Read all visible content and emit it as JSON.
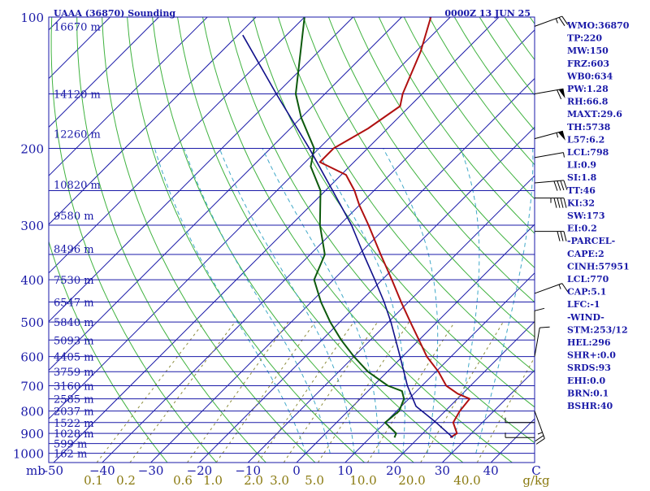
{
  "header": {
    "station": "UAAA (36870) Sounding",
    "time": "0000Z 13 JUN 25"
  },
  "colors": {
    "isobar": "#1a1aa8",
    "isotherm": "#1a1aa8",
    "dry_adiabat": "#3fb23f",
    "moist_adiabat": "#3fa8c8",
    "mixing_ratio": "#8c8c3c",
    "temperature": "#b01010",
    "dewpoint": "#0d5a0d",
    "parcel": "#10108a",
    "wind": "#000000"
  },
  "chart_data": {
    "type": "line",
    "title": "UAAA (36870) Sounding",
    "subtitle": "0000Z 13 JUN 25",
    "xlabel": "C",
    "x_units_mixing": "g/kg",
    "ylabel": "mb",
    "xlim": [
      -50,
      50
    ],
    "pressure_range": [
      1050,
      100
    ],
    "pressure_ticks": [
      100,
      200,
      300,
      400,
      500,
      600,
      700,
      800,
      900,
      1000
    ],
    "pressure_tick_labels": [
      "100",
      "200",
      "300",
      "400",
      "500",
      "600",
      "700",
      "800",
      "900",
      "1000"
    ],
    "pressure_axis_label": "mb",
    "temperature_ticks": [
      -50,
      -40,
      -30,
      -20,
      -10,
      0,
      10,
      20,
      30,
      40
    ],
    "temperature_tick_labels": [
      "-50",
      "−40",
      "−30",
      "−20",
      "−10",
      "0",
      "10",
      "20",
      "30",
      "40"
    ],
    "temperature_axis_label": "C",
    "mixing_ratio_labels": [
      "0.1",
      "0.2",
      "0.6",
      "1.0",
      "2.0",
      "3.0",
      "5.0",
      "10.0",
      "20.0",
      "40.0"
    ],
    "mixing_ratio_axis_label": "g/kg",
    "heights": [
      {
        "p": 105,
        "label": "16670 m"
      },
      {
        "p": 150,
        "label": "14120 m"
      },
      {
        "p": 185,
        "label": "12260 m"
      },
      {
        "p": 242,
        "label": "10820 m"
      },
      {
        "p": 285,
        "label": "9580 m"
      },
      {
        "p": 340,
        "label": "8496 m"
      },
      {
        "p": 400,
        "label": "7530 m"
      },
      {
        "p": 450,
        "label": "6547 m"
      },
      {
        "p": 500,
        "label": "5840 m"
      },
      {
        "p": 550,
        "label": "5093 m"
      },
      {
        "p": 600,
        "label": "4405 m"
      },
      {
        "p": 650,
        "label": "3759 m"
      },
      {
        "p": 700,
        "label": "3160 m"
      },
      {
        "p": 750,
        "label": "2585 m"
      },
      {
        "p": 800,
        "label": "2037 m"
      },
      {
        "p": 850,
        "label": "1522 m"
      },
      {
        "p": 900,
        "label": "1028 m"
      },
      {
        "p": 950,
        "label": "599 m"
      },
      {
        "p": 1000,
        "label": "162 m"
      }
    ],
    "series": [
      {
        "name": "Temperature",
        "points": [
          {
            "p": 920,
            "t": 26.5
          },
          {
            "p": 900,
            "t": 27.0
          },
          {
            "p": 850,
            "t": 24.0
          },
          {
            "p": 800,
            "t": 23.0
          },
          {
            "p": 750,
            "t": 22.5
          },
          {
            "p": 730,
            "t": 19.0
          },
          {
            "p": 700,
            "t": 15.0
          },
          {
            "p": 650,
            "t": 10.5
          },
          {
            "p": 600,
            "t": 5.0
          },
          {
            "p": 550,
            "t": 0.0
          },
          {
            "p": 500,
            "t": -5.5
          },
          {
            "p": 450,
            "t": -11.5
          },
          {
            "p": 400,
            "t": -18.0
          },
          {
            "p": 350,
            "t": -25.5
          },
          {
            "p": 300,
            "t": -34.0
          },
          {
            "p": 270,
            "t": -40.0
          },
          {
            "p": 250,
            "t": -44.0
          },
          {
            "p": 230,
            "t": -49.0
          },
          {
            "p": 215,
            "t": -57.0
          },
          {
            "p": 200,
            "t": -57.0
          },
          {
            "p": 180,
            "t": -54.0
          },
          {
            "p": 160,
            "t": -52.0
          },
          {
            "p": 150,
            "t": -54.0
          },
          {
            "p": 120,
            "t": -59.0
          },
          {
            "p": 100,
            "t": -64.0
          }
        ]
      },
      {
        "name": "Dewpoint",
        "points": [
          {
            "p": 920,
            "t": 15.0
          },
          {
            "p": 900,
            "t": 14.5
          },
          {
            "p": 850,
            "t": 10.0
          },
          {
            "p": 800,
            "t": 10.5
          },
          {
            "p": 750,
            "t": 9.0
          },
          {
            "p": 720,
            "t": 7.0
          },
          {
            "p": 700,
            "t": 3.0
          },
          {
            "p": 650,
            "t": -4.0
          },
          {
            "p": 600,
            "t": -10.0
          },
          {
            "p": 550,
            "t": -16.0
          },
          {
            "p": 500,
            "t": -22.0
          },
          {
            "p": 450,
            "t": -28.0
          },
          {
            "p": 400,
            "t": -34.0
          },
          {
            "p": 350,
            "t": -37.0
          },
          {
            "p": 300,
            "t": -44.0
          },
          {
            "p": 250,
            "t": -51.0
          },
          {
            "p": 220,
            "t": -58.0
          },
          {
            "p": 200,
            "t": -61.0
          },
          {
            "p": 170,
            "t": -70.0
          },
          {
            "p": 150,
            "t": -76.0
          },
          {
            "p": 100,
            "t": -90.0
          }
        ]
      },
      {
        "name": "Parcel",
        "points": [
          {
            "p": 920,
            "t": 27.0
          },
          {
            "p": 850,
            "t": 20.5
          },
          {
            "p": 780,
            "t": 13.0
          },
          {
            "p": 700,
            "t": 7.0
          },
          {
            "p": 600,
            "t": -0.5
          },
          {
            "p": 500,
            "t": -9.5
          },
          {
            "p": 450,
            "t": -15.0
          },
          {
            "p": 400,
            "t": -21.5
          },
          {
            "p": 350,
            "t": -29.0
          },
          {
            "p": 300,
            "t": -37.5
          },
          {
            "p": 250,
            "t": -48.5
          },
          {
            "p": 200,
            "t": -62.0
          },
          {
            "p": 150,
            "t": -80.0
          },
          {
            "p": 110,
            "t": -99.0
          }
        ]
      }
    ],
    "winds": [
      {
        "p": 105,
        "dir": 250,
        "spd": 25
      },
      {
        "p": 150,
        "dir": 260,
        "spd": 60
      },
      {
        "p": 190,
        "dir": 255,
        "spd": 55
      },
      {
        "p": 210,
        "dir": 260,
        "spd": 5
      },
      {
        "p": 240,
        "dir": 265,
        "spd": 40
      },
      {
        "p": 260,
        "dir": 270,
        "spd": 45
      },
      {
        "p": 310,
        "dir": 270,
        "spd": 30
      },
      {
        "p": 430,
        "dir": 250,
        "spd": 15
      },
      {
        "p": 550,
        "dir": 180,
        "spd": 10
      },
      {
        "p": 600,
        "dir": 190,
        "spd": 10
      },
      {
        "p": 800,
        "dir": 340,
        "spd": 25
      },
      {
        "p": 850,
        "dir": 90,
        "spd": 5
      },
      {
        "p": 920,
        "dir": 90,
        "spd": 5
      }
    ]
  },
  "indices": [
    "WMO:36870",
    "TP:220",
    "MW:150",
    "FRZ:603",
    "WB0:634",
    "PW:1.28",
    "RH:66.8",
    "MAXT:29.6",
    "TH:5738",
    "L57:6.2",
    "LCL:798",
    "LI:0.9",
    "SI:1.8",
    "TT:46",
    "KI:32",
    "SW:173",
    "EI:0.2",
    "-PARCEL-",
    "CAPE:2",
    "CINH:57951",
    "LCL:770",
    "CAP:5.1",
    "LFC:-1",
    "-WIND-",
    "STM:253/12",
    "HEL:296",
    "SHR+:0.0",
    "SRDS:93",
    "EHI:0.0",
    "BRN:0.1",
    "BSHR:40"
  ]
}
